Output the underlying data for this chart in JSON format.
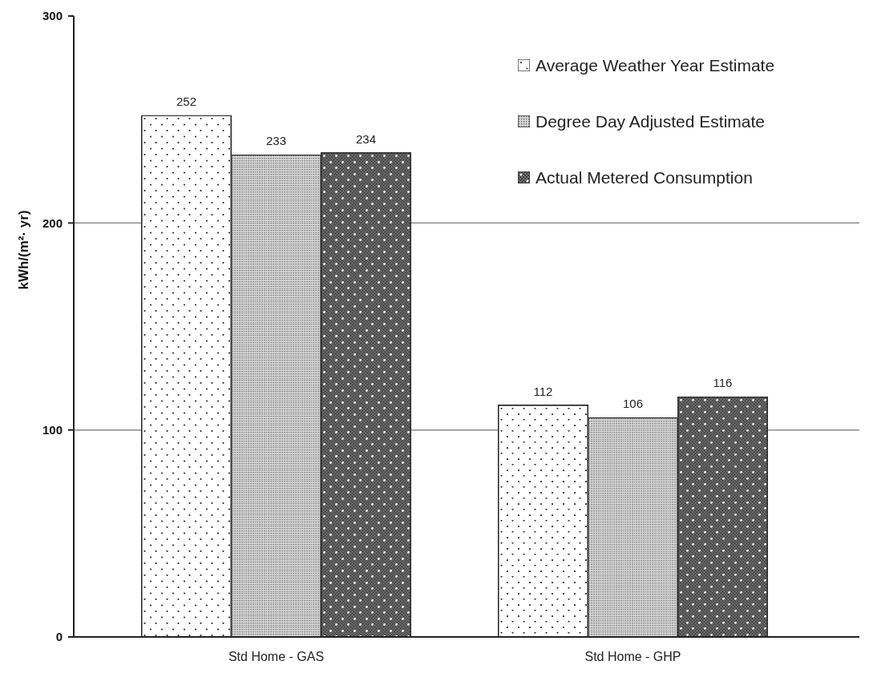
{
  "chart_data": {
    "type": "bar",
    "ylabel": "kWh/(m²· yr)",
    "categories": [
      "Std Home - GAS",
      "Std Home - GHP"
    ],
    "series": [
      {
        "name": "Average Weather Year Estimate",
        "color": "#ffffff",
        "values": [
          252,
          112
        ]
      },
      {
        "name": "Degree Day Adjusted Estimate",
        "color": "#d4d4d4",
        "values": [
          233,
          106
        ]
      },
      {
        "name": "Actual Metered Consumption",
        "color": "#7a7a7a",
        "values": [
          234,
          116
        ]
      }
    ],
    "ylim": [
      0,
      300
    ],
    "yticks": [
      0,
      100,
      200,
      300
    ],
    "grid": "y",
    "legend": "top right",
    "data_labels": true
  }
}
